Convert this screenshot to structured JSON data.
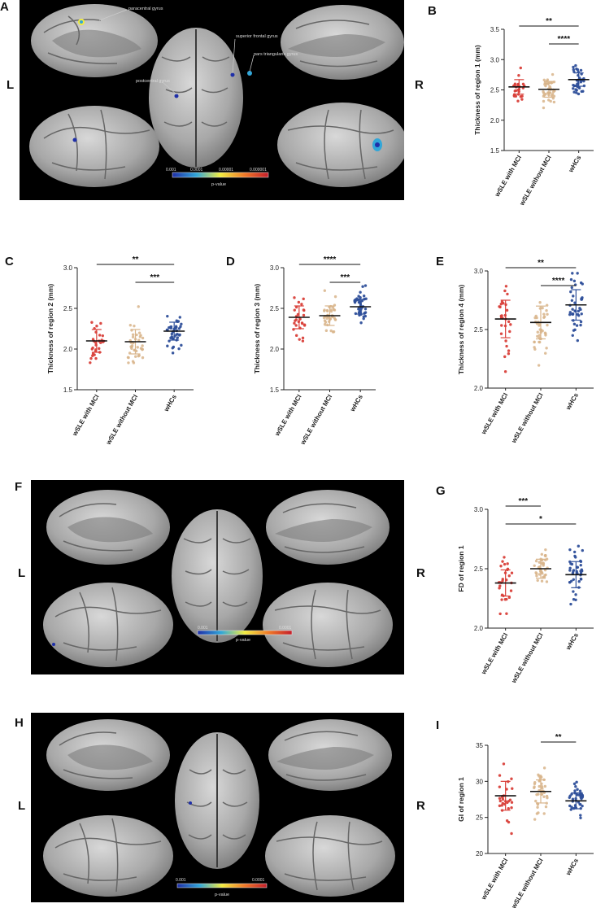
{
  "panels": {
    "A": {
      "letter": "A",
      "left": "L",
      "right": "R",
      "annotations": [
        "paracentral gyrus",
        "superior frontal gyrus",
        "pars triangularis gyrus",
        "postcentral gyrus"
      ],
      "colorbar_ticks": [
        "0.001",
        "0.0001",
        "0.00001",
        "0.000001"
      ],
      "colorbar_label": "p-value"
    },
    "F": {
      "letter": "F",
      "left": "L",
      "right": "R",
      "colorbar_ticks": [
        "0.001",
        "0.0001"
      ],
      "colorbar_label": "p-value"
    },
    "H": {
      "letter": "H",
      "left": "L",
      "right": "R",
      "colorbar_ticks": [
        "0.001",
        "0.0001"
      ],
      "colorbar_label": "p-value"
    }
  },
  "colors": {
    "wSLE with MCI": "#d9403a",
    "wSLE without MCI": "#d8b48a",
    "wHCs": "#2e4f9a",
    "background": "#000000",
    "cortex": "#9a9a9a"
  },
  "chart_data": [
    {
      "panel": "B",
      "type": "scatter",
      "ylabel": "Thickness of region 1  (mm)",
      "categories": [
        "wSLE with MCI",
        "wSLE without MCI",
        "wHCs"
      ],
      "ylim": [
        1.5,
        3.5
      ],
      "yticks": [
        "1.5",
        "2.0",
        "2.5",
        "3.0",
        "3.5"
      ],
      "mean": [
        2.55,
        2.51,
        2.67
      ],
      "sd": [
        0.12,
        0.13,
        0.11
      ],
      "significance": [
        {
          "from": 0,
          "to": 2,
          "label": "**"
        },
        {
          "from": 1,
          "to": 2,
          "label": "****"
        }
      ]
    },
    {
      "panel": "C",
      "type": "scatter",
      "ylabel": "Thickness of region 2  (mm)",
      "categories": [
        "wSLE with MCI",
        "wSLE without MCI",
        "wHCs"
      ],
      "ylim": [
        1.5,
        3.0
      ],
      "yticks": [
        "1.5",
        "2.0",
        "2.5",
        "3.0"
      ],
      "mean": [
        2.1,
        2.09,
        2.22
      ],
      "sd": [
        0.14,
        0.15,
        0.11
      ],
      "significance": [
        {
          "from": 0,
          "to": 2,
          "label": "**"
        },
        {
          "from": 1,
          "to": 2,
          "label": "***"
        }
      ]
    },
    {
      "panel": "D",
      "type": "scatter",
      "ylabel": "Thickness of region 3  (mm)",
      "categories": [
        "wSLE with MCI",
        "wSLE without MCI",
        "wHCs"
      ],
      "ylim": [
        1.5,
        3.0
      ],
      "yticks": [
        "1.5",
        "2.0",
        "2.5",
        "3.0"
      ],
      "mean": [
        2.39,
        2.41,
        2.52
      ],
      "sd": [
        0.14,
        0.12,
        0.09
      ],
      "significance": [
        {
          "from": 0,
          "to": 2,
          "label": "****"
        },
        {
          "from": 1,
          "to": 2,
          "label": "***"
        }
      ]
    },
    {
      "panel": "E",
      "type": "scatter",
      "ylabel": "Thickness of region 4  (mm)",
      "categories": [
        "wSLE with MCI",
        "wSLE without MCI",
        "wHCs"
      ],
      "ylim": [
        2.0,
        3.0
      ],
      "yticks": [
        "2.0",
        "2.5",
        "3.0"
      ],
      "mean": [
        2.59,
        2.56,
        2.71
      ],
      "sd": [
        0.16,
        0.14,
        0.13
      ],
      "significance": [
        {
          "from": 0,
          "to": 2,
          "label": "**"
        },
        {
          "from": 1,
          "to": 2,
          "label": "****"
        }
      ]
    },
    {
      "panel": "G",
      "type": "scatter",
      "ylabel": "FD of region 1",
      "categories": [
        "wSLE with MCI",
        "wSLE without MCI",
        "wHCs"
      ],
      "ylim": [
        2.0,
        3.0
      ],
      "yticks": [
        "2.0",
        "2.5",
        "3.0"
      ],
      "mean": [
        2.38,
        2.5,
        2.45
      ],
      "sd": [
        0.11,
        0.08,
        0.11
      ],
      "significance": [
        {
          "from": 0,
          "to": 1,
          "label": "***"
        },
        {
          "from": 0,
          "to": 2,
          "label": "*"
        }
      ]
    },
    {
      "panel": "I",
      "type": "scatter",
      "ylabel": "GI of region 1",
      "categories": [
        "wSLE with MCI",
        "wSLE without MCI",
        "wHCs"
      ],
      "ylim": [
        20,
        35
      ],
      "yticks": [
        "20",
        "25",
        "30",
        "35"
      ],
      "mean": [
        28.0,
        28.6,
        27.3
      ],
      "sd": [
        2.0,
        1.6,
        1.1
      ],
      "significance": [
        {
          "from": 1,
          "to": 2,
          "label": "**"
        }
      ]
    }
  ]
}
